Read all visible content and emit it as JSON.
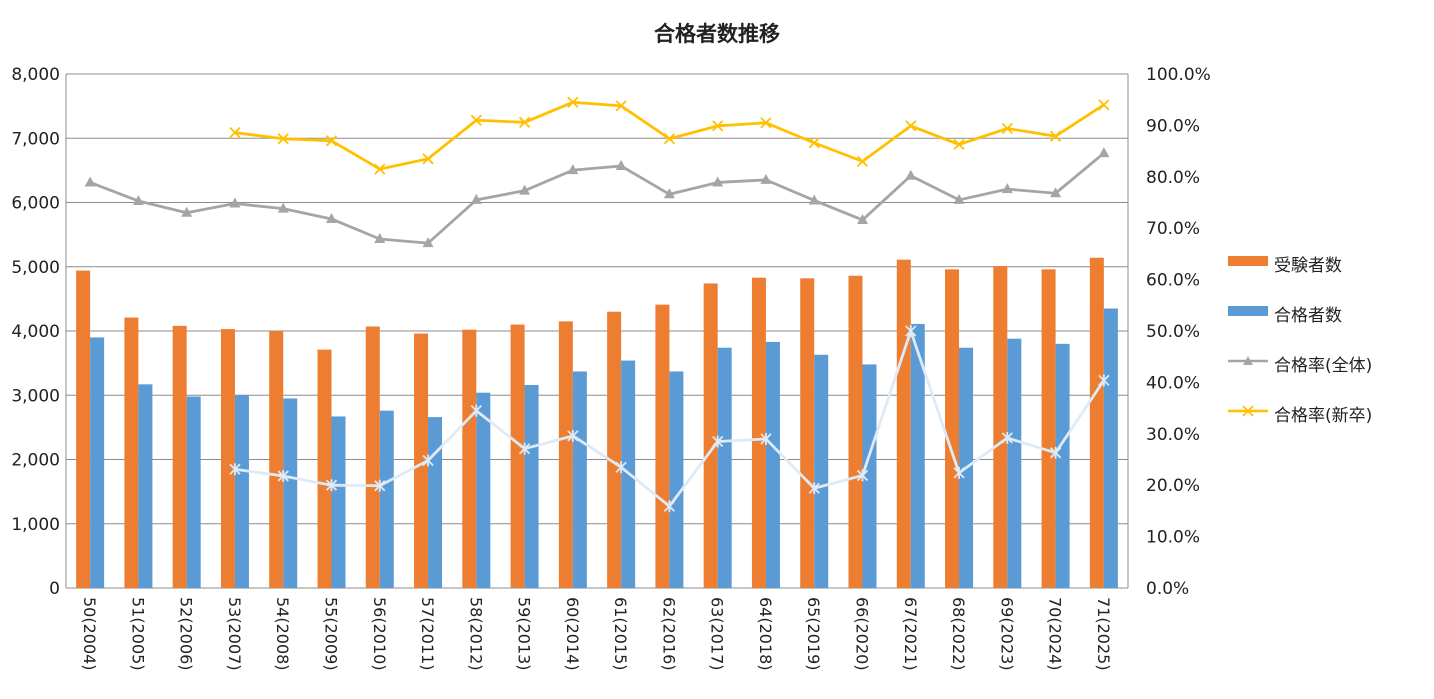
{
  "chart_data": {
    "type": "bar",
    "title": "合格者数推移",
    "categories": [
      "50(2004)",
      "51(2005)",
      "52(2006)",
      "53(2007)",
      "54(2008)",
      "55(2009)",
      "56(2010)",
      "57(2011)",
      "58(2012)",
      "59(2013)",
      "60(2014)",
      "61(2015)",
      "62(2016)",
      "63(2017)",
      "64(2018)",
      "65(2019)",
      "66(2020)",
      "67(2021)",
      "68(2022)",
      "69(2023)",
      "70(2024)",
      "71(2025)"
    ],
    "y_left": {
      "ylim": [
        0,
        8000
      ],
      "ticks": [
        "0",
        "1,000",
        "2,000",
        "3,000",
        "4,000",
        "5,000",
        "6,000",
        "7,000",
        "8,000"
      ]
    },
    "y_right": {
      "ylim": [
        0,
        100
      ],
      "ticks": [
        "0.0%",
        "10.0%",
        "20.0%",
        "30.0%",
        "40.0%",
        "50.0%",
        "60.0%",
        "70.0%",
        "80.0%",
        "90.0%",
        "100.0%"
      ]
    },
    "grid": true,
    "legend_position": "right",
    "series": [
      {
        "name": "受験者数",
        "kind": "bar",
        "axis": "left",
        "color": "#ED7D31",
        "values": [
          4940,
          4210,
          4080,
          4030,
          4000,
          3710,
          4070,
          3960,
          4020,
          4100,
          4150,
          4300,
          4410,
          4740,
          4830,
          4820,
          4860,
          5110,
          4960,
          5010,
          4960,
          5140
        ]
      },
      {
        "name": "合格者数",
        "kind": "bar",
        "axis": "left",
        "color": "#5B9BD5",
        "values": [
          3900,
          3170,
          2980,
          3000,
          2950,
          2670,
          2760,
          2660,
          3040,
          3160,
          3370,
          3540,
          3370,
          3740,
          3830,
          3630,
          3480,
          4110,
          3740,
          3880,
          3800,
          4350
        ]
      },
      {
        "name": "合格率(全体)",
        "kind": "line",
        "axis": "right",
        "color": "#A5A5A5",
        "marker": "triangle",
        "values": [
          78.9,
          75.3,
          73.0,
          74.8,
          73.8,
          71.8,
          67.9,
          67.1,
          75.5,
          77.3,
          81.3,
          82.1,
          76.6,
          78.9,
          79.4,
          75.4,
          71.6,
          80.2,
          75.5,
          77.6,
          76.8,
          84.6
        ]
      },
      {
        "name": "合格率(新卒)",
        "kind": "line",
        "axis": "right",
        "color": "#FFC000",
        "marker": "x",
        "values": [
          null,
          null,
          null,
          88.6,
          87.4,
          87.0,
          81.5,
          83.5,
          91.0,
          90.6,
          94.5,
          93.8,
          87.4,
          89.9,
          90.5,
          86.6,
          83.0,
          89.9,
          86.3,
          89.4,
          87.9,
          94.0
        ]
      },
      {
        "kind": "line",
        "axis": "right",
        "color": "#DEEBF7",
        "marker": "star",
        "values": [
          null,
          null,
          null,
          23.1,
          21.8,
          20.0,
          19.9,
          24.8,
          34.5,
          27.1,
          29.6,
          23.5,
          15.9,
          28.5,
          29.0,
          19.4,
          21.9,
          50.0,
          22.4,
          29.2,
          26.3,
          40.4
        ]
      }
    ]
  }
}
